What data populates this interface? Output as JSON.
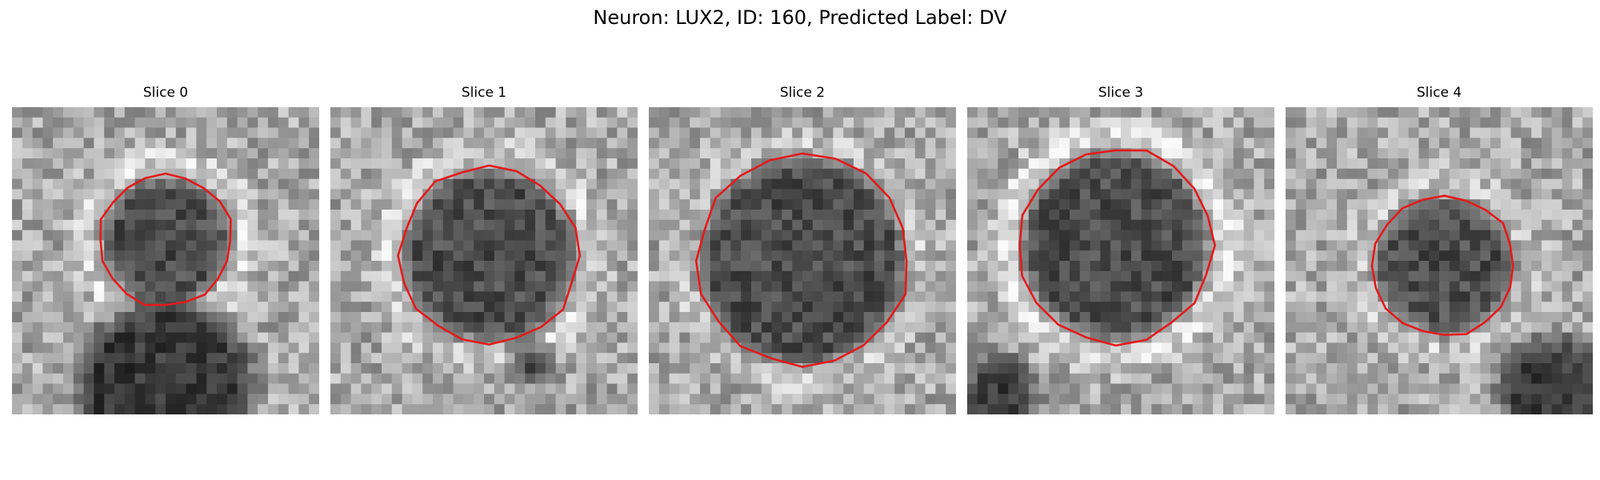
{
  "figure": {
    "title": "Neuron: LUX2, ID: 160, Predicted Label: DV"
  },
  "image_grid": {
    "pixels_per_side": 30,
    "colormap": "gray",
    "contour_color": "#e31a1c"
  },
  "panels": [
    {
      "title": "Slice 0",
      "seed": 11,
      "blob": {
        "cx": 15.0,
        "cy": 13.0,
        "r": 6.2
      },
      "blob2": {
        "cx": 15.0,
        "cy": 27.5,
        "r": 9.0
      },
      "bright_ring": 0.18
    },
    {
      "title": "Slice 1",
      "seed": 23,
      "blob": {
        "cx": 15.5,
        "cy": 14.5,
        "r": 8.4
      },
      "blob2": {
        "cx": 19.5,
        "cy": 25.0,
        "r": 2.2
      },
      "bright_ring": 0.16
    },
    {
      "title": "Slice 2",
      "seed": 37,
      "blob": {
        "cx": 15.0,
        "cy": 15.0,
        "r": 10.0
      },
      "blob2": null,
      "bright_ring": 0.1
    },
    {
      "title": "Slice 3",
      "seed": 53,
      "blob": {
        "cx": 14.5,
        "cy": 13.5,
        "r": 9.2
      },
      "blob2": {
        "cx": 3.0,
        "cy": 28.0,
        "r": 4.0
      },
      "bright_ring": 0.22
    },
    {
      "title": "Slice 4",
      "seed": 71,
      "blob": {
        "cx": 15.5,
        "cy": 15.5,
        "r": 6.6
      },
      "blob2": {
        "cx": 26.0,
        "cy": 27.5,
        "r": 5.5
      },
      "bright_ring": 0.12
    }
  ]
}
